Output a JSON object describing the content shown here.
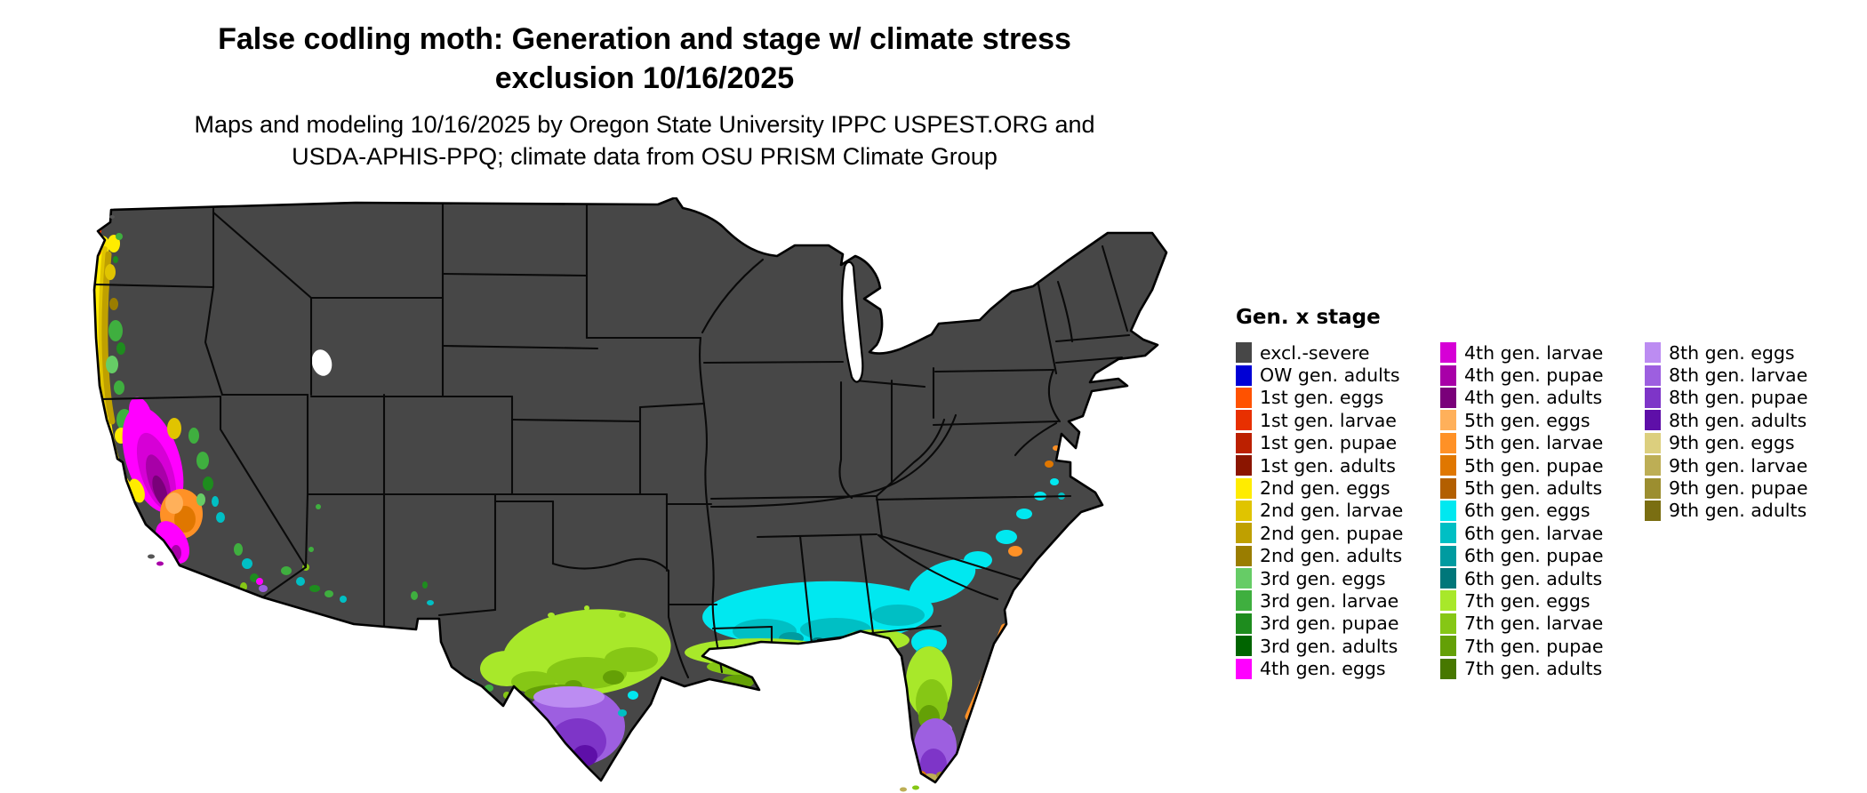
{
  "title": {
    "line1": "False codling moth: Generation and stage w/ climate stress",
    "line2": "exclusion 10/16/2025"
  },
  "subtitle": {
    "line1": "Maps and modeling 10/16/2025 by Oregon State University IPPC USPEST.ORG and",
    "line2": "USDA-APHIS-PPQ; climate data from OSU PRISM Climate Group"
  },
  "legend": {
    "title": "Gen. x stage",
    "columns": [
      [
        {
          "label": "excl.-severe",
          "color": "#474747"
        },
        {
          "label": "OW gen. adults",
          "color": "#0000D5"
        },
        {
          "label": "1st gen. eggs",
          "color": "#FF5200"
        },
        {
          "label": "1st gen. larvae",
          "color": "#E83000"
        },
        {
          "label": "1st gen. pupae",
          "color": "#BC2000"
        },
        {
          "label": "1st gen. adults",
          "color": "#8B1500"
        },
        {
          "label": "2nd gen. eggs",
          "color": "#FFEC00"
        },
        {
          "label": "2nd gen. larvae",
          "color": "#E0C400"
        },
        {
          "label": "2nd gen. pupae",
          "color": "#BFA000"
        },
        {
          "label": "2nd gen. adults",
          "color": "#9A7D00"
        },
        {
          "label": "3rd gen. eggs",
          "color": "#66CC66"
        },
        {
          "label": "3rd gen. larvae",
          "color": "#3FAF3F"
        },
        {
          "label": "3rd gen. pupae",
          "color": "#1E8C1E"
        },
        {
          "label": "3rd gen. adults",
          "color": "#006400"
        },
        {
          "label": "4th gen. eggs",
          "color": "#FF00FF"
        }
      ],
      [
        {
          "label": "4th gen. larvae",
          "color": "#D600D6"
        },
        {
          "label": "4th gen. pupae",
          "color": "#A800A8"
        },
        {
          "label": "4th gen. adults",
          "color": "#7A007A"
        },
        {
          "label": "5th gen. eggs",
          "color": "#FFB05A"
        },
        {
          "label": "5th gen. larvae",
          "color": "#FF9126"
        },
        {
          "label": "5th gen. pupae",
          "color": "#E07700"
        },
        {
          "label": "5th gen. adults",
          "color": "#B35F00"
        },
        {
          "label": "6th gen. eggs",
          "color": "#00E8F0"
        },
        {
          "label": "6th gen. larvae",
          "color": "#00BFC4"
        },
        {
          "label": "6th gen. pupae",
          "color": "#009BA0"
        },
        {
          "label": "6th gen. adults",
          "color": "#00777A"
        },
        {
          "label": "7th gen. eggs",
          "color": "#A8E82A"
        },
        {
          "label": "7th gen. larvae",
          "color": "#86C715"
        },
        {
          "label": "7th gen. pupae",
          "color": "#64A006"
        },
        {
          "label": "7th gen. adults",
          "color": "#477800"
        }
      ],
      [
        {
          "label": "8th gen. eggs",
          "color": "#BC8CF2"
        },
        {
          "label": "8th gen. larvae",
          "color": "#9D5FE0"
        },
        {
          "label": "8th gen. pupae",
          "color": "#7E35C8"
        },
        {
          "label": "8th gen. adults",
          "color": "#5E0FA8"
        },
        {
          "label": "9th gen. eggs",
          "color": "#DCCF7E"
        },
        {
          "label": "9th gen. larvae",
          "color": "#BDAE55"
        },
        {
          "label": "9th gen. pupae",
          "color": "#9C8E30"
        },
        {
          "label": "9th gen. adults",
          "color": "#7A6E12"
        }
      ]
    ]
  },
  "map": {
    "base_land_color": "#474747",
    "outline_color": "#000000",
    "background_color": "#ffffff"
  }
}
